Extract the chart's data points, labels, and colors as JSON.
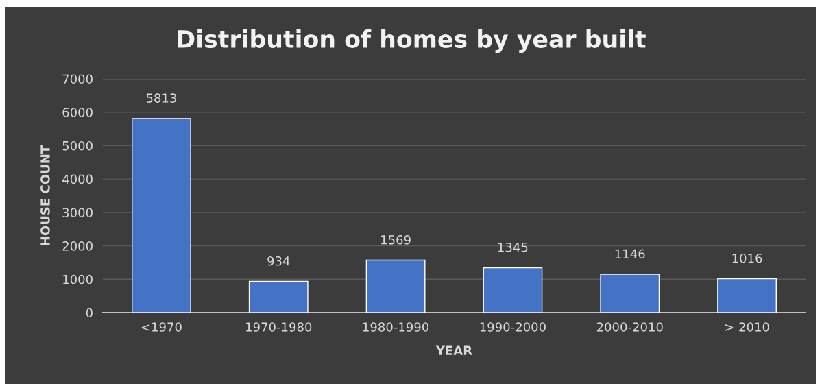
{
  "chart_data": {
    "type": "bar",
    "title": "Distribution of homes by year built",
    "xlabel": "YEAR",
    "ylabel": "HOUSE COUNT",
    "categories": [
      "<1970",
      "1970-1980",
      "1980-1990",
      "1990-2000",
      "2000-2010",
      "> 2010"
    ],
    "values": [
      5813,
      934,
      1569,
      1345,
      1146,
      1016
    ],
    "color": "#4472c4",
    "ylim": [
      0,
      7000
    ],
    "yticks": [
      0,
      1000,
      2000,
      3000,
      4000,
      5000,
      6000,
      7000
    ],
    "grid": "y",
    "data_labels": true
  }
}
